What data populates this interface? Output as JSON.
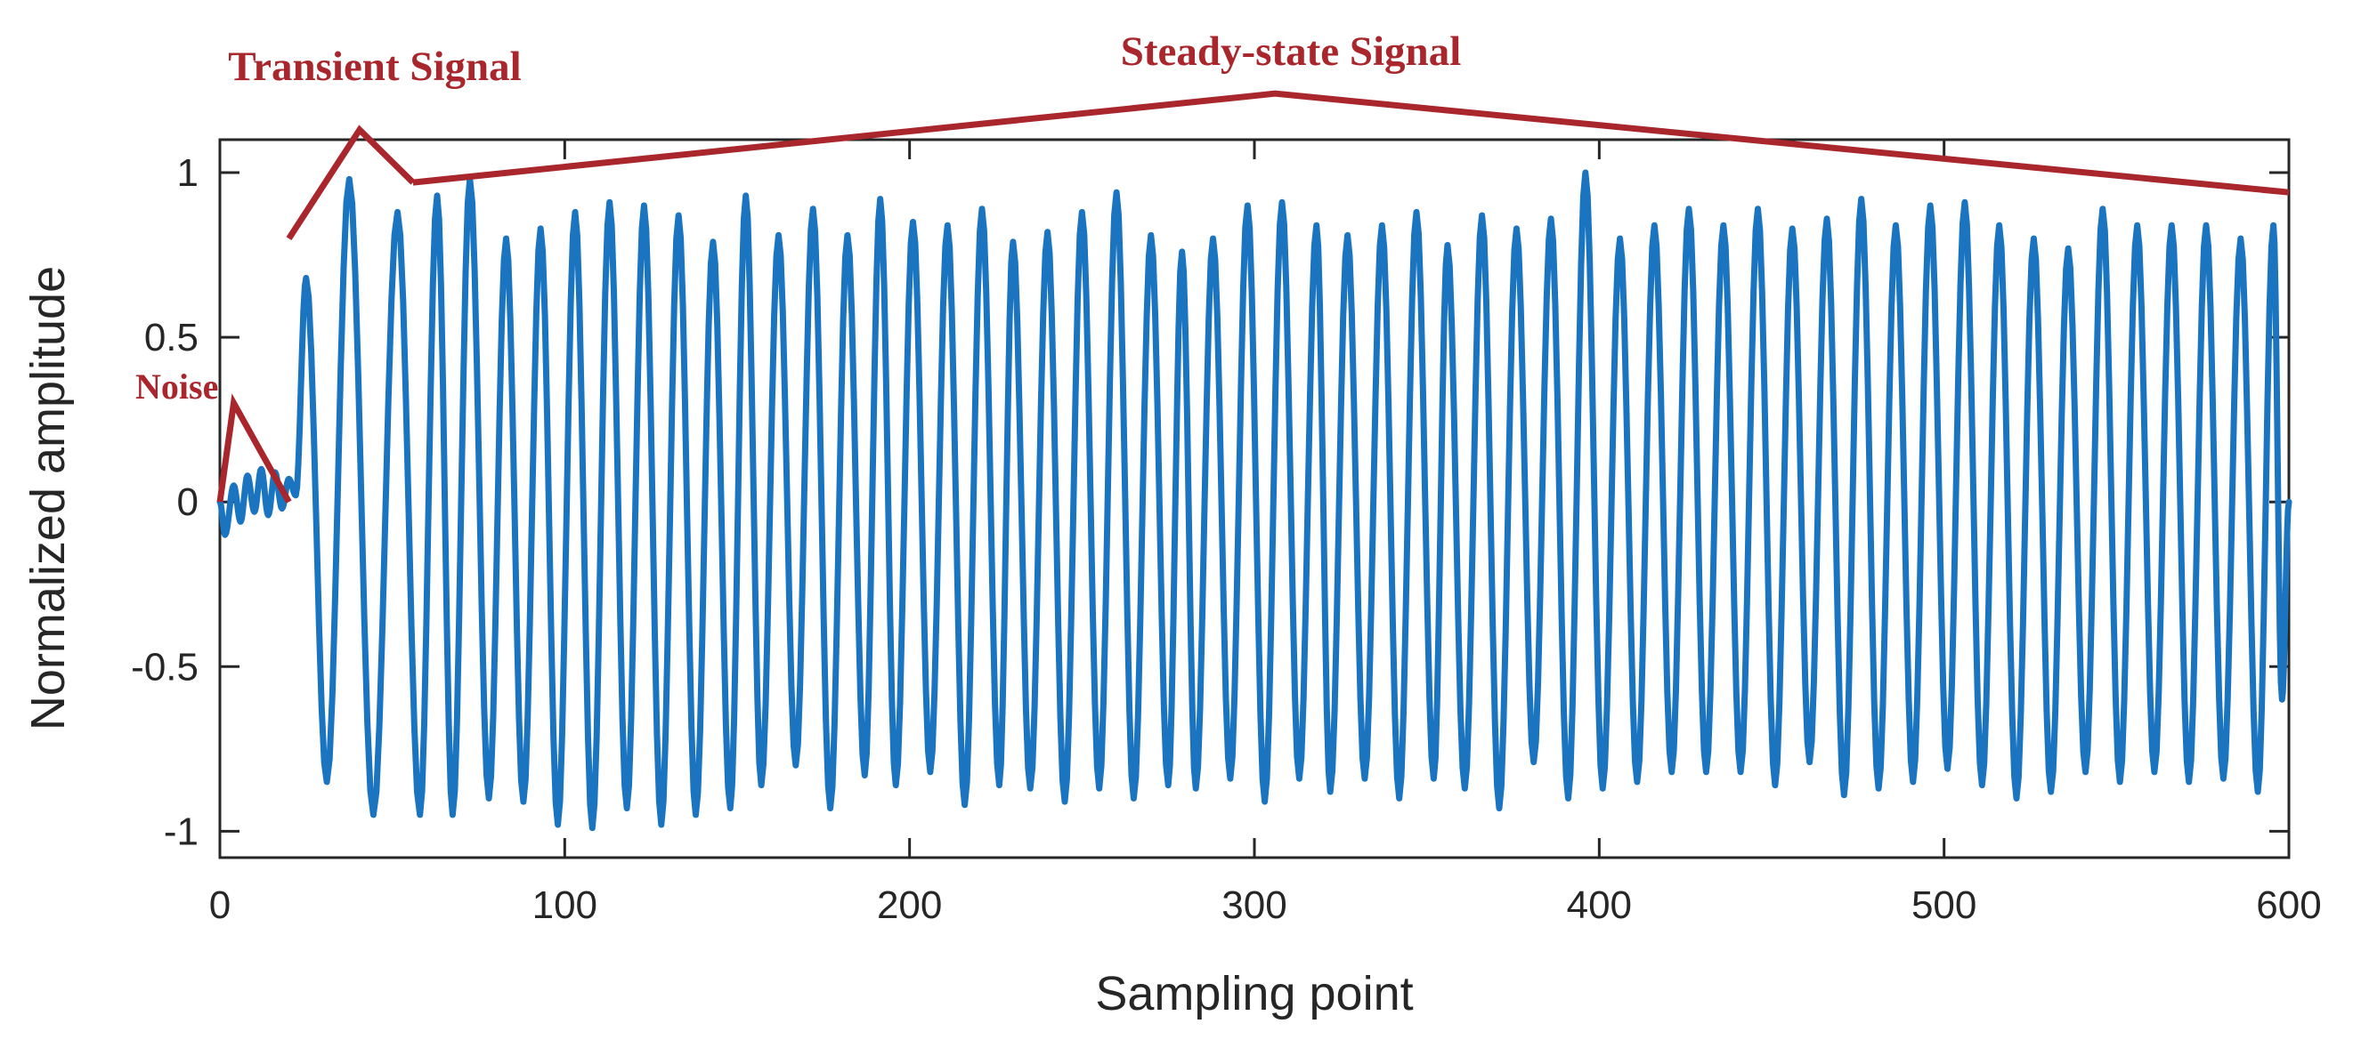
{
  "chart_data": {
    "type": "line",
    "title": "",
    "xlabel": "Sampling point",
    "ylabel": "Normalized amplitude",
    "xlim": [
      0,
      600
    ],
    "ylim": [
      -1.08,
      1.1
    ],
    "xticks": [
      0,
      100,
      200,
      300,
      400,
      500,
      600
    ],
    "xtick_labels": [
      "0",
      "100",
      "200",
      "300",
      "400",
      "500",
      "600"
    ],
    "yticks": [
      -1,
      -0.5,
      0,
      0.5,
      1
    ],
    "ytick_labels": [
      "-1",
      "-0.5",
      "0",
      "0.5",
      "1"
    ],
    "grid": false,
    "colors": {
      "series": "#1a74bf",
      "annotation": "#a8262c",
      "axis": "#262626"
    },
    "series": [
      {
        "name": "",
        "peaks": [
          [
            0,
            0
          ],
          [
            1.5,
            -0.1
          ],
          [
            4,
            0.05
          ],
          [
            6,
            -0.06
          ],
          [
            8,
            0.08
          ],
          [
            10,
            -0.03
          ],
          [
            12,
            0.1
          ],
          [
            14,
            -0.04
          ],
          [
            16,
            0.09
          ],
          [
            18,
            -0.02
          ],
          [
            20,
            0.07
          ],
          [
            22,
            0.02
          ],
          [
            25,
            0.68
          ],
          [
            31,
            -0.85
          ],
          [
            37.5,
            0.98
          ],
          [
            44.5,
            -0.95
          ],
          [
            51.5,
            0.88
          ],
          [
            58,
            -0.95
          ],
          [
            63,
            0.93
          ],
          [
            67.5,
            -0.95
          ],
          [
            72.5,
            0.98
          ],
          [
            78,
            -0.9
          ],
          [
            83,
            0.8
          ],
          [
            88,
            -0.91
          ],
          [
            93,
            0.83
          ],
          [
            98,
            -0.98
          ],
          [
            103,
            0.88
          ],
          [
            108,
            -0.99
          ],
          [
            113,
            0.91
          ],
          [
            118,
            -0.93
          ],
          [
            123,
            0.9
          ],
          [
            128,
            -0.98
          ],
          [
            133,
            0.87
          ],
          [
            138,
            -0.95
          ],
          [
            143,
            0.79
          ],
          [
            148,
            -0.93
          ],
          [
            152.5,
            0.93
          ],
          [
            157,
            -0.86
          ],
          [
            162,
            0.81
          ],
          [
            167,
            -0.8
          ],
          [
            172,
            0.89
          ],
          [
            177,
            -0.93
          ],
          [
            182,
            0.81
          ],
          [
            187,
            -0.83
          ],
          [
            191.5,
            0.92
          ],
          [
            196,
            -0.86
          ],
          [
            201,
            0.85
          ],
          [
            206,
            -0.82
          ],
          [
            211,
            0.84
          ],
          [
            216,
            -0.92
          ],
          [
            221,
            0.89
          ],
          [
            226,
            -0.86
          ],
          [
            230,
            0.79
          ],
          [
            235,
            -0.87
          ],
          [
            240,
            0.82
          ],
          [
            245,
            -0.91
          ],
          [
            250,
            0.88
          ],
          [
            255,
            -0.87
          ],
          [
            260,
            0.94
          ],
          [
            265,
            -0.9
          ],
          [
            270,
            0.81
          ],
          [
            275,
            -0.86
          ],
          [
            279,
            0.76
          ],
          [
            283,
            -0.87
          ],
          [
            288,
            0.8
          ],
          [
            293,
            -0.84
          ],
          [
            298,
            0.9
          ],
          [
            303,
            -0.91
          ],
          [
            308,
            0.91
          ],
          [
            313,
            -0.84
          ],
          [
            318,
            0.84
          ],
          [
            322,
            -0.88
          ],
          [
            327,
            0.81
          ],
          [
            332,
            -0.84
          ],
          [
            337,
            0.84
          ],
          [
            342,
            -0.9
          ],
          [
            347,
            0.88
          ],
          [
            352,
            -0.84
          ],
          [
            356,
            0.78
          ],
          [
            361,
            -0.87
          ],
          [
            366,
            0.87
          ],
          [
            371,
            -0.93
          ],
          [
            376,
            0.83
          ],
          [
            381,
            -0.79
          ],
          [
            386,
            0.86
          ],
          [
            391,
            -0.9
          ],
          [
            396,
            1.0
          ],
          [
            401,
            -0.87
          ],
          [
            406,
            0.8
          ],
          [
            411,
            -0.85
          ],
          [
            416,
            0.84
          ],
          [
            421,
            -0.82
          ],
          [
            426,
            0.89
          ],
          [
            431,
            -0.82
          ],
          [
            436,
            0.84
          ],
          [
            441,
            -0.82
          ],
          [
            446,
            0.89
          ],
          [
            451,
            -0.86
          ],
          [
            456,
            0.83
          ],
          [
            461,
            -0.79
          ],
          [
            466,
            0.86
          ],
          [
            471,
            -0.89
          ],
          [
            476,
            0.92
          ],
          [
            481,
            -0.87
          ],
          [
            486,
            0.84
          ],
          [
            491,
            -0.85
          ],
          [
            496,
            0.9
          ],
          [
            501,
            -0.81
          ],
          [
            506,
            0.91
          ],
          [
            511,
            -0.86
          ],
          [
            516,
            0.84
          ],
          [
            521,
            -0.9
          ],
          [
            526,
            0.8
          ],
          [
            531,
            -0.88
          ],
          [
            536,
            0.77
          ],
          [
            541,
            -0.82
          ],
          [
            546,
            0.89
          ],
          [
            551,
            -0.85
          ],
          [
            556,
            0.84
          ],
          [
            561,
            -0.82
          ],
          [
            566,
            0.84
          ],
          [
            571,
            -0.85
          ],
          [
            576,
            0.84
          ],
          [
            581,
            -0.84
          ],
          [
            586,
            0.8
          ],
          [
            591,
            -0.88
          ],
          [
            595.5,
            0.84
          ],
          [
            598,
            -0.6
          ],
          [
            600,
            0
          ]
        ]
      }
    ],
    "annotations": [
      {
        "label": "Noise",
        "bracket": [
          [
            0,
            0
          ],
          [
            4,
            0.3
          ],
          [
            20,
            0
          ]
        ]
      },
      {
        "label": "Transient Signal",
        "bracket": [
          [
            20,
            0.8
          ],
          [
            40.5,
            1.13
          ],
          [
            56,
            0.97
          ]
        ]
      },
      {
        "label": "Steady-state Signal",
        "bracket": [
          [
            56,
            0.97
          ],
          [
            306,
            1.24
          ],
          [
            600,
            0.94
          ]
        ]
      }
    ]
  }
}
